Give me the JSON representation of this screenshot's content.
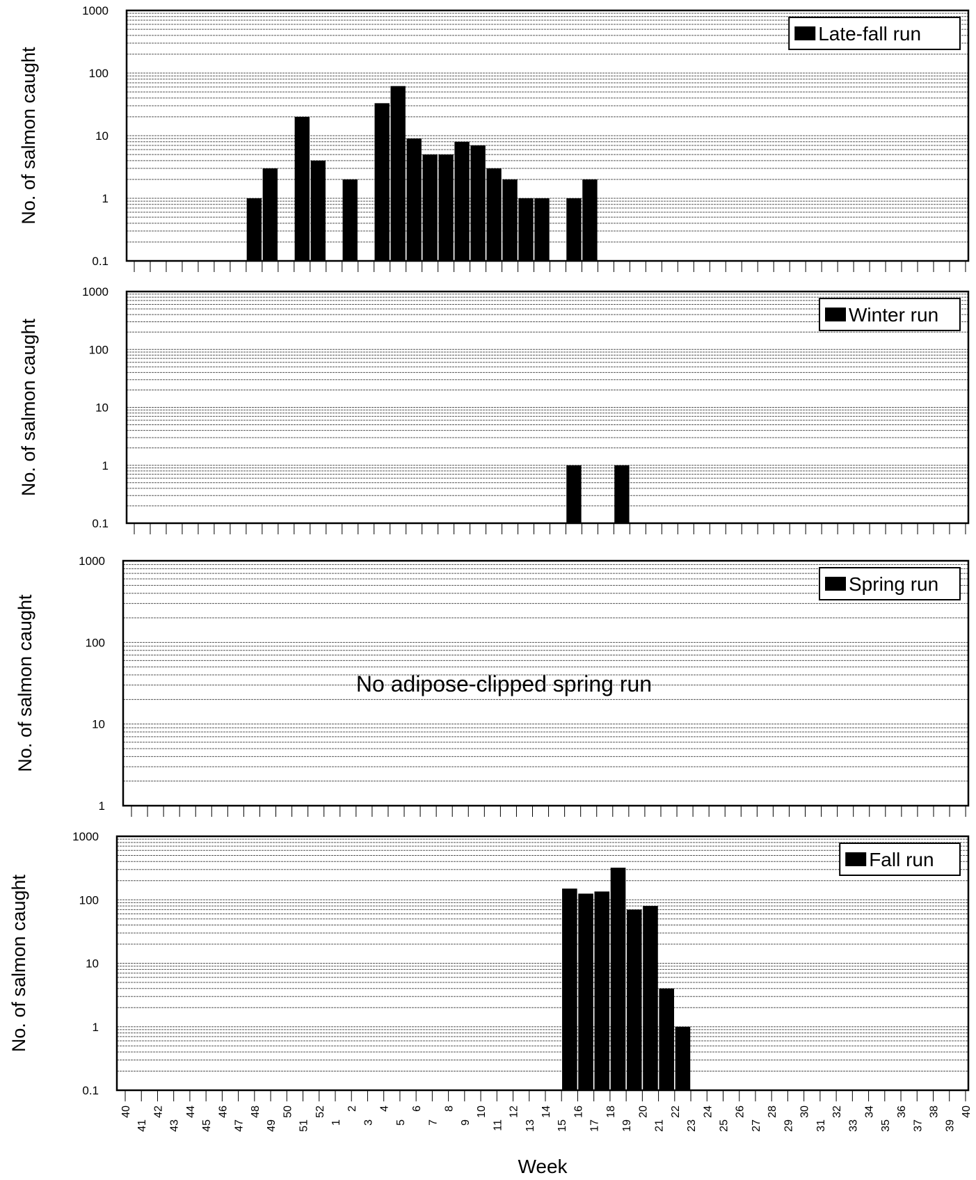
{
  "chart_data": [
    {
      "type": "bar",
      "ylabel": "No. of salmon caught",
      "yscale": "log",
      "ylim": [
        0.1,
        1000
      ],
      "yticks": [
        "0.1",
        "1",
        "10",
        "100",
        "1000"
      ],
      "legend": "Late-fall run",
      "legend_position": "top-right",
      "grid": true,
      "points": [
        {
          "week": "47",
          "value": 1
        },
        {
          "week": "48",
          "value": 3
        },
        {
          "week": "50",
          "value": 20
        },
        {
          "week": "51",
          "value": 4
        },
        {
          "week": "1",
          "value": 2
        },
        {
          "week": "3",
          "value": 33
        },
        {
          "week": "4",
          "value": 62
        },
        {
          "week": "5",
          "value": 9
        },
        {
          "week": "6",
          "value": 5
        },
        {
          "week": "7",
          "value": 5
        },
        {
          "week": "8",
          "value": 8
        },
        {
          "week": "9",
          "value": 7
        },
        {
          "week": "10",
          "value": 3
        },
        {
          "week": "11",
          "value": 2
        },
        {
          "week": "12",
          "value": 1
        },
        {
          "week": "13",
          "value": 1
        },
        {
          "week": "15",
          "value": 1
        },
        {
          "week": "16",
          "value": 2
        }
      ]
    },
    {
      "type": "bar",
      "ylabel": "No. of salmon caught",
      "yscale": "log",
      "ylim": [
        0.1,
        1000
      ],
      "yticks": [
        "0.1",
        "1",
        "10",
        "100",
        "1000"
      ],
      "legend": "Winter run",
      "legend_position": "top-right",
      "grid": true,
      "points": [
        {
          "week": "15",
          "value": 1
        },
        {
          "week": "18",
          "value": 1
        }
      ]
    },
    {
      "type": "bar",
      "ylabel": "No. of salmon caught",
      "yscale": "log",
      "ylim": [
        1,
        1000
      ],
      "yticks": [
        "1",
        "10",
        "100",
        "1000"
      ],
      "legend": "Spring run",
      "legend_position": "top-right",
      "grid": true,
      "note": "No adipose-clipped spring run",
      "points": []
    },
    {
      "type": "bar",
      "ylabel": "No. of salmon caught",
      "xlabel": "Week",
      "yscale": "log",
      "ylim": [
        0.1,
        1000
      ],
      "yticks": [
        "0.1",
        "1",
        "10",
        "100",
        "1000"
      ],
      "legend": "Fall run",
      "legend_position": "top-right",
      "grid": true,
      "points": [
        {
          "week": "15",
          "value": 150
        },
        {
          "week": "16",
          "value": 125
        },
        {
          "week": "17",
          "value": 135
        },
        {
          "week": "18",
          "value": 320
        },
        {
          "week": "19",
          "value": 70
        },
        {
          "week": "20",
          "value": 80
        },
        {
          "week": "21",
          "value": 4
        },
        {
          "week": "22",
          "value": 1
        }
      ]
    }
  ],
  "weeks": [
    "40",
    "41",
    "42",
    "43",
    "44",
    "45",
    "46",
    "47",
    "48",
    "49",
    "50",
    "51",
    "52",
    "1",
    "2",
    "3",
    "4",
    "5",
    "6",
    "7",
    "8",
    "9",
    "10",
    "11",
    "12",
    "13",
    "14",
    "15",
    "16",
    "17",
    "18",
    "19",
    "20",
    "21",
    "22",
    "23",
    "24",
    "25",
    "26",
    "27",
    "28",
    "29",
    "30",
    "31",
    "32",
    "33",
    "34",
    "35",
    "36",
    "37",
    "38",
    "39",
    "40"
  ],
  "colors": {
    "bar": "#000000",
    "grid": "#555555",
    "frame": "#000000",
    "background": "#ffffff"
  }
}
